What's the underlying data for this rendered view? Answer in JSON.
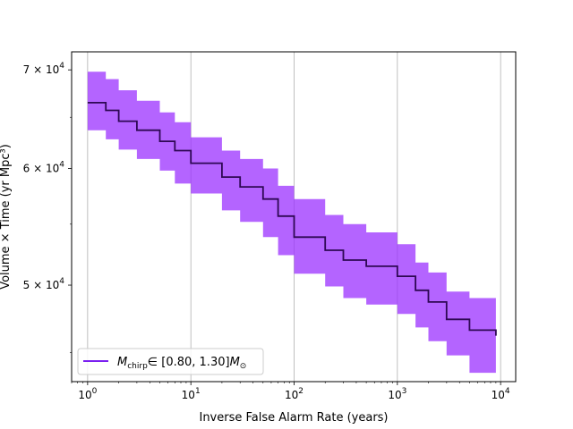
{
  "chart_data": {
    "type": "line",
    "title": "",
    "xlabel": "Inverse False Alarm Rate (years)",
    "ylabel": "Volume × Time (yr Mpc³)",
    "x_scale": "log",
    "y_scale": "log",
    "xlim": [
      0.7,
      14000
    ],
    "ylim": [
      43000,
      72000
    ],
    "x_ticks": [
      {
        "value": 1,
        "base": "10",
        "exp": "0"
      },
      {
        "value": 10,
        "base": "10",
        "exp": "1"
      },
      {
        "value": 100,
        "base": "10",
        "exp": "2"
      },
      {
        "value": 1000,
        "base": "10",
        "exp": "3"
      },
      {
        "value": 10000,
        "base": "10",
        "exp": "4"
      }
    ],
    "y_ticks": [
      {
        "value": 50000,
        "mantissa": "5 × 10",
        "exp": "4"
      },
      {
        "value": 60000,
        "mantissa": "6 × 10",
        "exp": "4"
      },
      {
        "value": 70000,
        "mantissa": "7 × 10",
        "exp": "4"
      }
    ],
    "grid": "vertical-major",
    "legend_position": "lower-left",
    "series": [
      {
        "name": "M_chirp ∈ [0.80, 1.30] M_⊙",
        "legend_main": "M",
        "legend_sub": "chirp",
        "legend_range": "∈ [0.80, 1.30]",
        "legend_unit": "M",
        "legend_unit_sub": "⊙",
        "line_color": "#2e0854",
        "band_color": "#9b30ff",
        "band_opacity": 0.75,
        "legend_color": "#7a1ff0",
        "x": [
          1,
          1.5,
          2,
          3,
          5,
          7,
          10,
          20,
          30,
          50,
          70,
          100,
          200,
          300,
          500,
          1000,
          1500,
          2000,
          3000,
          5000,
          9000
        ],
        "y": [
          66500,
          65700,
          64600,
          63700,
          62600,
          61700,
          60500,
          59200,
          58300,
          57200,
          55700,
          53900,
          52800,
          52000,
          51500,
          50700,
          49600,
          48700,
          47400,
          46600,
          46200
        ],
        "y_upper": [
          69800,
          69000,
          67800,
          66700,
          65500,
          64500,
          63000,
          61700,
          60900,
          60000,
          58400,
          57200,
          55800,
          55000,
          54300,
          53300,
          51800,
          51000,
          49500,
          49000,
          48700
        ],
        "y_lower": [
          63700,
          62800,
          61800,
          60900,
          59800,
          58600,
          57700,
          56200,
          55200,
          53900,
          52400,
          50900,
          49900,
          49000,
          48500,
          47800,
          46800,
          45800,
          44800,
          43600,
          43300
        ]
      }
    ]
  }
}
